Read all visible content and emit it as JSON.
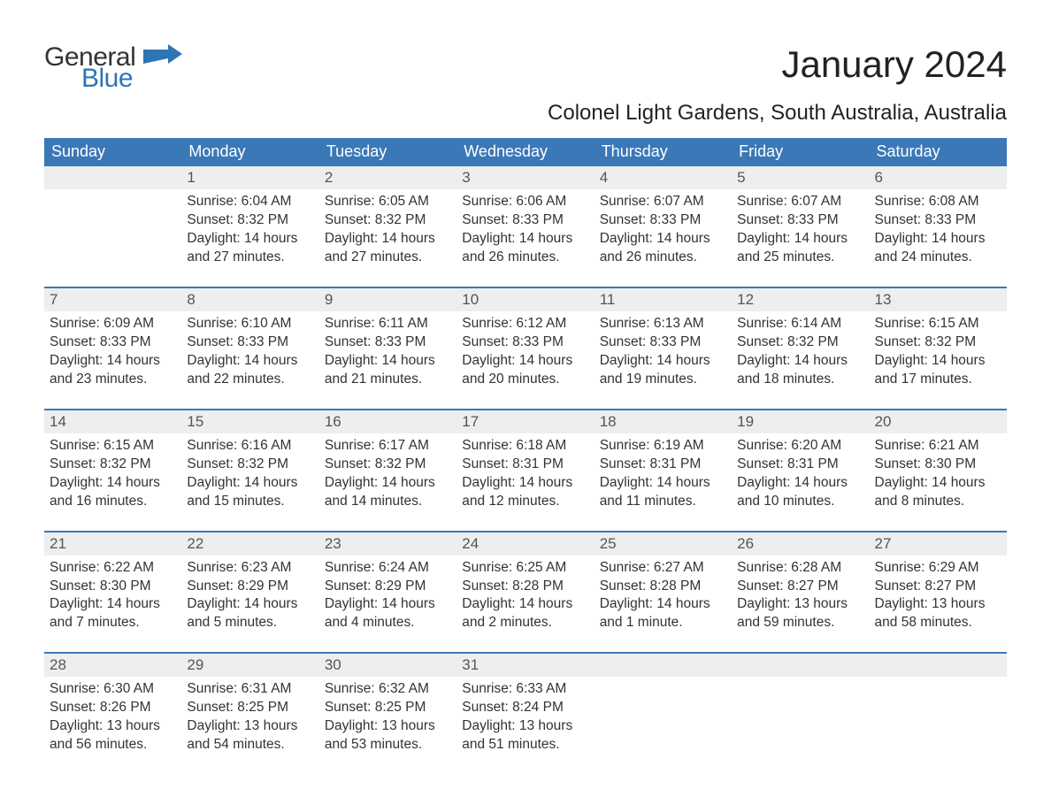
{
  "brand": {
    "general": "General",
    "blue": "Blue",
    "flag_color": "#2f74b5"
  },
  "title": "January 2024",
  "location": "Colonel Light Gardens, South Australia, Australia",
  "colors": {
    "header_bg": "#3b78b8",
    "header_text": "#ffffff",
    "row_rule": "#3b78b8",
    "daynum_bg": "#eceeef",
    "body_text": "#333333"
  },
  "weekdays": [
    "Sunday",
    "Monday",
    "Tuesday",
    "Wednesday",
    "Thursday",
    "Friday",
    "Saturday"
  ],
  "weeks": [
    [
      {
        "blank": true
      },
      {
        "n": "1",
        "sunrise": "Sunrise: 6:04 AM",
        "sunset": "Sunset: 8:32 PM",
        "day1": "Daylight: 14 hours",
        "day2": "and 27 minutes."
      },
      {
        "n": "2",
        "sunrise": "Sunrise: 6:05 AM",
        "sunset": "Sunset: 8:32 PM",
        "day1": "Daylight: 14 hours",
        "day2": "and 27 minutes."
      },
      {
        "n": "3",
        "sunrise": "Sunrise: 6:06 AM",
        "sunset": "Sunset: 8:33 PM",
        "day1": "Daylight: 14 hours",
        "day2": "and 26 minutes."
      },
      {
        "n": "4",
        "sunrise": "Sunrise: 6:07 AM",
        "sunset": "Sunset: 8:33 PM",
        "day1": "Daylight: 14 hours",
        "day2": "and 26 minutes."
      },
      {
        "n": "5",
        "sunrise": "Sunrise: 6:07 AM",
        "sunset": "Sunset: 8:33 PM",
        "day1": "Daylight: 14 hours",
        "day2": "and 25 minutes."
      },
      {
        "n": "6",
        "sunrise": "Sunrise: 6:08 AM",
        "sunset": "Sunset: 8:33 PM",
        "day1": "Daylight: 14 hours",
        "day2": "and 24 minutes."
      }
    ],
    [
      {
        "n": "7",
        "sunrise": "Sunrise: 6:09 AM",
        "sunset": "Sunset: 8:33 PM",
        "day1": "Daylight: 14 hours",
        "day2": "and 23 minutes."
      },
      {
        "n": "8",
        "sunrise": "Sunrise: 6:10 AM",
        "sunset": "Sunset: 8:33 PM",
        "day1": "Daylight: 14 hours",
        "day2": "and 22 minutes."
      },
      {
        "n": "9",
        "sunrise": "Sunrise: 6:11 AM",
        "sunset": "Sunset: 8:33 PM",
        "day1": "Daylight: 14 hours",
        "day2": "and 21 minutes."
      },
      {
        "n": "10",
        "sunrise": "Sunrise: 6:12 AM",
        "sunset": "Sunset: 8:33 PM",
        "day1": "Daylight: 14 hours",
        "day2": "and 20 minutes."
      },
      {
        "n": "11",
        "sunrise": "Sunrise: 6:13 AM",
        "sunset": "Sunset: 8:33 PM",
        "day1": "Daylight: 14 hours",
        "day2": "and 19 minutes."
      },
      {
        "n": "12",
        "sunrise": "Sunrise: 6:14 AM",
        "sunset": "Sunset: 8:32 PM",
        "day1": "Daylight: 14 hours",
        "day2": "and 18 minutes."
      },
      {
        "n": "13",
        "sunrise": "Sunrise: 6:15 AM",
        "sunset": "Sunset: 8:32 PM",
        "day1": "Daylight: 14 hours",
        "day2": "and 17 minutes."
      }
    ],
    [
      {
        "n": "14",
        "sunrise": "Sunrise: 6:15 AM",
        "sunset": "Sunset: 8:32 PM",
        "day1": "Daylight: 14 hours",
        "day2": "and 16 minutes."
      },
      {
        "n": "15",
        "sunrise": "Sunrise: 6:16 AM",
        "sunset": "Sunset: 8:32 PM",
        "day1": "Daylight: 14 hours",
        "day2": "and 15 minutes."
      },
      {
        "n": "16",
        "sunrise": "Sunrise: 6:17 AM",
        "sunset": "Sunset: 8:32 PM",
        "day1": "Daylight: 14 hours",
        "day2": "and 14 minutes."
      },
      {
        "n": "17",
        "sunrise": "Sunrise: 6:18 AM",
        "sunset": "Sunset: 8:31 PM",
        "day1": "Daylight: 14 hours",
        "day2": "and 12 minutes."
      },
      {
        "n": "18",
        "sunrise": "Sunrise: 6:19 AM",
        "sunset": "Sunset: 8:31 PM",
        "day1": "Daylight: 14 hours",
        "day2": "and 11 minutes."
      },
      {
        "n": "19",
        "sunrise": "Sunrise: 6:20 AM",
        "sunset": "Sunset: 8:31 PM",
        "day1": "Daylight: 14 hours",
        "day2": "and 10 minutes."
      },
      {
        "n": "20",
        "sunrise": "Sunrise: 6:21 AM",
        "sunset": "Sunset: 8:30 PM",
        "day1": "Daylight: 14 hours",
        "day2": "and 8 minutes."
      }
    ],
    [
      {
        "n": "21",
        "sunrise": "Sunrise: 6:22 AM",
        "sunset": "Sunset: 8:30 PM",
        "day1": "Daylight: 14 hours",
        "day2": "and 7 minutes."
      },
      {
        "n": "22",
        "sunrise": "Sunrise: 6:23 AM",
        "sunset": "Sunset: 8:29 PM",
        "day1": "Daylight: 14 hours",
        "day2": "and 5 minutes."
      },
      {
        "n": "23",
        "sunrise": "Sunrise: 6:24 AM",
        "sunset": "Sunset: 8:29 PM",
        "day1": "Daylight: 14 hours",
        "day2": "and 4 minutes."
      },
      {
        "n": "24",
        "sunrise": "Sunrise: 6:25 AM",
        "sunset": "Sunset: 8:28 PM",
        "day1": "Daylight: 14 hours",
        "day2": "and 2 minutes."
      },
      {
        "n": "25",
        "sunrise": "Sunrise: 6:27 AM",
        "sunset": "Sunset: 8:28 PM",
        "day1": "Daylight: 14 hours",
        "day2": "and 1 minute."
      },
      {
        "n": "26",
        "sunrise": "Sunrise: 6:28 AM",
        "sunset": "Sunset: 8:27 PM",
        "day1": "Daylight: 13 hours",
        "day2": "and 59 minutes."
      },
      {
        "n": "27",
        "sunrise": "Sunrise: 6:29 AM",
        "sunset": "Sunset: 8:27 PM",
        "day1": "Daylight: 13 hours",
        "day2": "and 58 minutes."
      }
    ],
    [
      {
        "n": "28",
        "sunrise": "Sunrise: 6:30 AM",
        "sunset": "Sunset: 8:26 PM",
        "day1": "Daylight: 13 hours",
        "day2": "and 56 minutes."
      },
      {
        "n": "29",
        "sunrise": "Sunrise: 6:31 AM",
        "sunset": "Sunset: 8:25 PM",
        "day1": "Daylight: 13 hours",
        "day2": "and 54 minutes."
      },
      {
        "n": "30",
        "sunrise": "Sunrise: 6:32 AM",
        "sunset": "Sunset: 8:25 PM",
        "day1": "Daylight: 13 hours",
        "day2": "and 53 minutes."
      },
      {
        "n": "31",
        "sunrise": "Sunrise: 6:33 AM",
        "sunset": "Sunset: 8:24 PM",
        "day1": "Daylight: 13 hours",
        "day2": "and 51 minutes."
      },
      {
        "blank": true
      },
      {
        "blank": true
      },
      {
        "blank": true
      }
    ]
  ]
}
